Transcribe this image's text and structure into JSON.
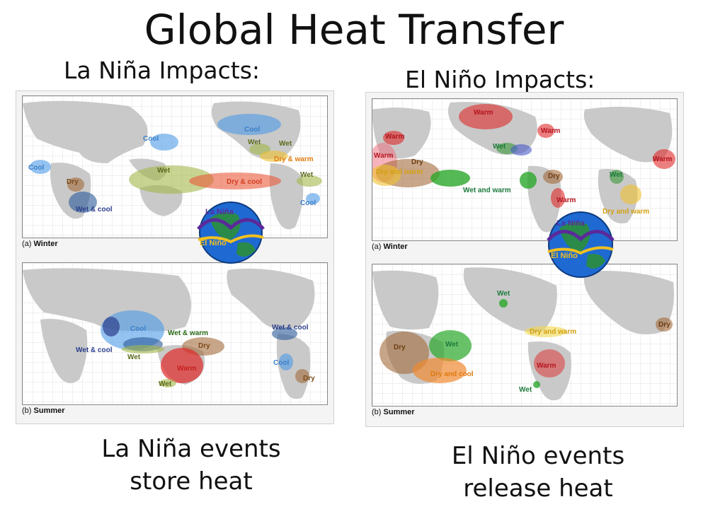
{
  "title": "Global Heat Transfer",
  "la_nina": {
    "heading": "La Niña Impacts:",
    "caption_line1": "La Niña events",
    "caption_line2": "store heat",
    "winter": {
      "tag": "(a)",
      "season": "Winter",
      "regions": [
        {
          "text": "Cool",
          "color": "#3a7fc8"
        },
        {
          "text": "Cool",
          "color": "#3a7fc8"
        },
        {
          "text": "Cool",
          "color": "#3a7fc8"
        },
        {
          "text": "Wet",
          "color": "#5a6b1a"
        },
        {
          "text": "Wet",
          "color": "#5a6b1a"
        },
        {
          "text": "Dry & warm",
          "color": "#e07a10"
        },
        {
          "text": "Wet",
          "color": "#5a6b1a"
        },
        {
          "text": "Wet",
          "color": "#5a6b1a"
        },
        {
          "text": "Dry & cool",
          "color": "#d23c20"
        },
        {
          "text": "Dry",
          "color": "#7a4a1a"
        },
        {
          "text": "Wet & cool",
          "color": "#2c3f8c"
        },
        {
          "text": "Cool",
          "color": "#3a7fc8"
        }
      ]
    },
    "summer": {
      "tag": "(b)",
      "season": "Summer",
      "regions": [
        {
          "text": "Cool",
          "color": "#3a7fc8"
        },
        {
          "text": "Wet & cool",
          "color": "#2c3f8c"
        },
        {
          "text": "Wet & warm",
          "color": "#2a6a14"
        },
        {
          "text": "Wet",
          "color": "#5a6b1a"
        },
        {
          "text": "Dry",
          "color": "#7a4a1a"
        },
        {
          "text": "Warm",
          "color": "#c81e1e"
        },
        {
          "text": "Wet",
          "color": "#5a6b1a"
        },
        {
          "text": "Wet & cool",
          "color": "#2c3f8c"
        },
        {
          "text": "Cool",
          "color": "#3a7fc8"
        },
        {
          "text": "Dry",
          "color": "#7a4a1a"
        }
      ]
    }
  },
  "el_nino": {
    "heading": "El Niño Impacts:",
    "caption_line1": "El Niño events",
    "caption_line2": "release heat",
    "winter": {
      "tag": "(a)",
      "season": "Winter",
      "regions": [
        {
          "text": "Warm",
          "color": "#b4141e"
        },
        {
          "text": "Warm",
          "color": "#b4141e"
        },
        {
          "text": "Warm",
          "color": "#b4141e"
        },
        {
          "text": "Warm",
          "color": "#b4141e"
        },
        {
          "text": "Dry",
          "color": "#6b3e14"
        },
        {
          "text": "Dry and warm",
          "color": "#d4a010"
        },
        {
          "text": "Wet",
          "color": "#1e7a3c"
        },
        {
          "text": "Wet and warm",
          "color": "#1e7a3c"
        },
        {
          "text": "Dry",
          "color": "#6b3e14"
        },
        {
          "text": "Warm",
          "color": "#b4141e"
        },
        {
          "text": "Wet",
          "color": "#1e7a3c"
        },
        {
          "text": "Dry and warm",
          "color": "#d4a010"
        },
        {
          "text": "Warm",
          "color": "#b4141e"
        }
      ]
    },
    "summer": {
      "tag": "(b)",
      "season": "Summer",
      "regions": [
        {
          "text": "Wet",
          "color": "#1e7a3c"
        },
        {
          "text": "Dry and warm",
          "color": "#d4a010"
        },
        {
          "text": "Dry",
          "color": "#6b3e14"
        },
        {
          "text": "Wet",
          "color": "#1e7a3c"
        },
        {
          "text": "Dry",
          "color": "#6b3e14"
        },
        {
          "text": "Dry and cool",
          "color": "#e07a10"
        },
        {
          "text": "Warm",
          "color": "#b4141e"
        },
        {
          "text": "Wet",
          "color": "#1e7a3c"
        }
      ]
    }
  },
  "globe": {
    "top_label": "La Niña",
    "bottom_label": "El Niño"
  }
}
